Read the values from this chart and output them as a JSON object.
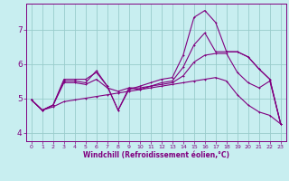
{
  "background_color": "#c8eef0",
  "line_color": "#800080",
  "grid_color": "#99cccc",
  "spine_color": "#800080",
  "xlim": [
    -0.5,
    23.5
  ],
  "ylim": [
    3.75,
    7.75
  ],
  "xticks": [
    0,
    1,
    2,
    3,
    4,
    5,
    6,
    7,
    8,
    9,
    10,
    11,
    12,
    13,
    14,
    15,
    16,
    17,
    18,
    19,
    20,
    21,
    22,
    23
  ],
  "yticks": [
    4,
    5,
    6,
    7
  ],
  "xlabel": "Windchill (Refroidissement éolien,°C)",
  "line1_x": [
    0,
    1,
    2,
    3,
    4,
    5,
    6,
    7,
    8,
    9,
    10,
    11,
    12,
    13,
    14,
    15,
    16,
    17,
    18,
    19,
    20,
    21,
    22,
    23
  ],
  "line1_y": [
    4.95,
    4.65,
    4.8,
    5.55,
    5.55,
    5.55,
    5.75,
    5.35,
    4.65,
    5.25,
    5.35,
    5.45,
    5.55,
    5.6,
    6.25,
    7.35,
    7.55,
    7.2,
    6.35,
    6.35,
    6.2,
    5.85,
    5.55,
    4.25
  ],
  "line2_x": [
    0,
    1,
    2,
    3,
    4,
    5,
    6,
    7,
    8,
    9,
    10,
    11,
    12,
    13,
    14,
    15,
    16,
    17,
    18,
    19,
    20,
    21,
    22,
    23
  ],
  "line2_y": [
    4.95,
    4.65,
    4.8,
    5.5,
    5.5,
    5.45,
    5.8,
    5.35,
    4.65,
    5.3,
    5.25,
    5.35,
    5.45,
    5.5,
    5.9,
    6.55,
    6.9,
    6.35,
    6.35,
    6.35,
    6.2,
    5.85,
    5.55,
    4.25
  ],
  "line3_x": [
    0,
    1,
    2,
    3,
    4,
    5,
    6,
    7,
    8,
    9,
    10,
    11,
    12,
    13,
    14,
    15,
    16,
    17,
    18,
    19,
    20,
    21,
    22,
    23
  ],
  "line3_y": [
    4.95,
    4.65,
    4.8,
    5.45,
    5.45,
    5.4,
    5.55,
    5.3,
    5.2,
    5.3,
    5.3,
    5.35,
    5.4,
    5.45,
    5.65,
    6.05,
    6.25,
    6.3,
    6.3,
    5.75,
    5.45,
    5.3,
    5.5,
    4.25
  ],
  "line4_x": [
    0,
    1,
    2,
    3,
    4,
    5,
    6,
    7,
    8,
    9,
    10,
    11,
    12,
    13,
    14,
    15,
    16,
    17,
    18,
    19,
    20,
    21,
    22,
    23
  ],
  "line4_y": [
    4.95,
    4.65,
    4.75,
    4.9,
    4.95,
    5.0,
    5.05,
    5.1,
    5.15,
    5.2,
    5.25,
    5.3,
    5.35,
    5.4,
    5.45,
    5.5,
    5.55,
    5.6,
    5.5,
    5.1,
    4.8,
    4.6,
    4.5,
    4.25
  ]
}
